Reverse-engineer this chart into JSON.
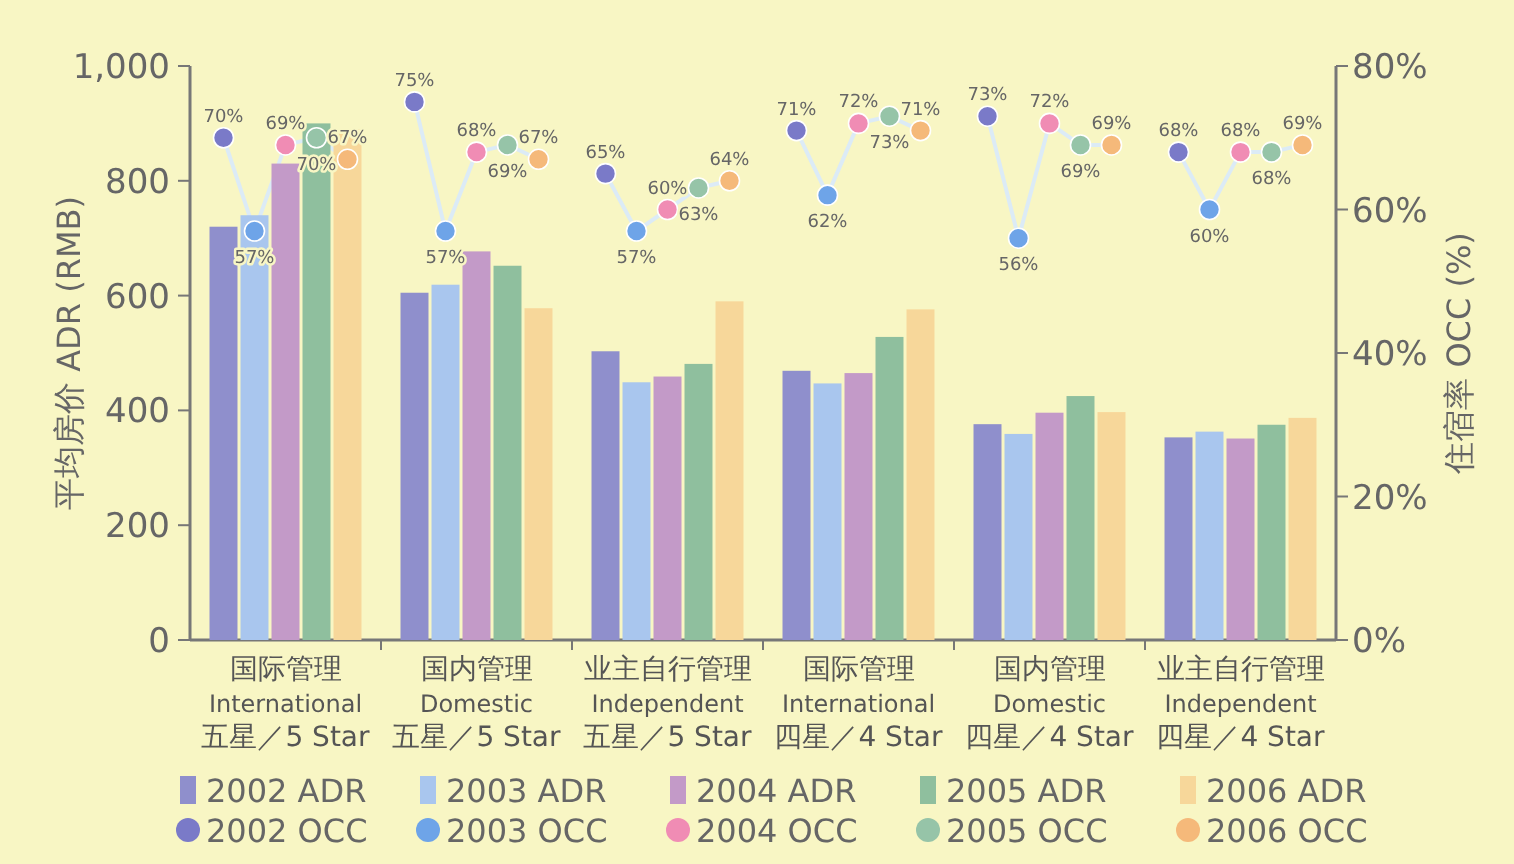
{
  "chart_data": {
    "type": "bar",
    "ylabel": "平均房价  ADR (RMB)",
    "y2label": "住宿率  OCC (%)",
    "categories": [
      "国际管理\nInternational\n五星／5 Star",
      "国内管理\nDomestic\n五星／5 Star",
      "业主自行管理\nIndependent\n五星／5 Star",
      "国际管理\nInternational\n四星／4 Star",
      "国内管理\nDomestic\n四星／4 Star",
      "业主自行管理\nIndependent\n四星／4 Star"
    ],
    "ylim": [
      0,
      1000
    ],
    "yticks": [
      0,
      200,
      400,
      600,
      800,
      {
        "value": 1000,
        "label": "1,000"
      }
    ],
    "y2lim": [
      0,
      80
    ],
    "y2ticks": [
      {
        "value": 0,
        "label": "0%"
      },
      {
        "value": 20,
        "label": "20%"
      },
      {
        "value": 40,
        "label": "40%"
      },
      {
        "value": 60,
        "label": "60%"
      },
      {
        "value": 80,
        "label": "80%"
      }
    ],
    "legend": "bottom",
    "grid": false,
    "series": [
      {
        "name": "2002 ADR",
        "color": "#8f8fcc",
        "values": [
          720,
          605,
          503,
          469,
          376,
          353
        ]
      },
      {
        "name": "2003 ADR",
        "color": "#a9c6ee",
        "values": [
          740,
          619,
          449,
          447,
          359,
          363
        ]
      },
      {
        "name": "2004 ADR",
        "color": "#c39ac8",
        "values": [
          830,
          677,
          459,
          465,
          396,
          351
        ]
      },
      {
        "name": "2005 ADR",
        "color": "#8fbf9e",
        "values": [
          900,
          652,
          481,
          528,
          425,
          375
        ]
      },
      {
        "name": "2006  ADR",
        "color": "#f7d79a",
        "values": [
          890,
          578,
          590,
          576,
          397,
          387
        ]
      },
      {
        "name": "2002 OCC",
        "type": "scatter",
        "axis": "y2",
        "marker": "circle",
        "color": "#7a7ac8",
        "values": [
          70,
          75,
          65,
          71,
          73,
          68
        ],
        "value_labels": [
          "70%",
          "75%",
          "65%",
          "71%",
          "73%",
          "68%"
        ]
      },
      {
        "name": "2003 OCC",
        "type": "scatter",
        "axis": "y2",
        "marker": "circle",
        "color": "#6ea4e8",
        "values": [
          57,
          57,
          57,
          62,
          56,
          60
        ],
        "value_labels": [
          "57%",
          "57%",
          "57%",
          "62%",
          "56%",
          "60%"
        ]
      },
      {
        "name": "2004 OCC",
        "type": "scatter",
        "axis": "y2",
        "marker": "circle",
        "color": "#f08cb4",
        "values": [
          69,
          68,
          60,
          72,
          72,
          68
        ],
        "value_labels": [
          "69%",
          "68%",
          "60%",
          "72%",
          "72%",
          "68%"
        ]
      },
      {
        "name": "2005 OCC",
        "type": "scatter",
        "axis": "y2",
        "marker": "circle",
        "color": "#96c4a8",
        "values": [
          70,
          69,
          63,
          73,
          69,
          68
        ],
        "value_labels": [
          "70%",
          "69%",
          "63%",
          "73%",
          "69%",
          "68%"
        ]
      },
      {
        "name": "2006  OCC",
        "type": "scatter",
        "axis": "y2",
        "marker": "circle",
        "color": "#f5b97a",
        "values": [
          67,
          67,
          64,
          71,
          69,
          69
        ],
        "value_labels": [
          "67%",
          "67%",
          "64%",
          "71%",
          "69%",
          "69%"
        ]
      }
    ]
  }
}
